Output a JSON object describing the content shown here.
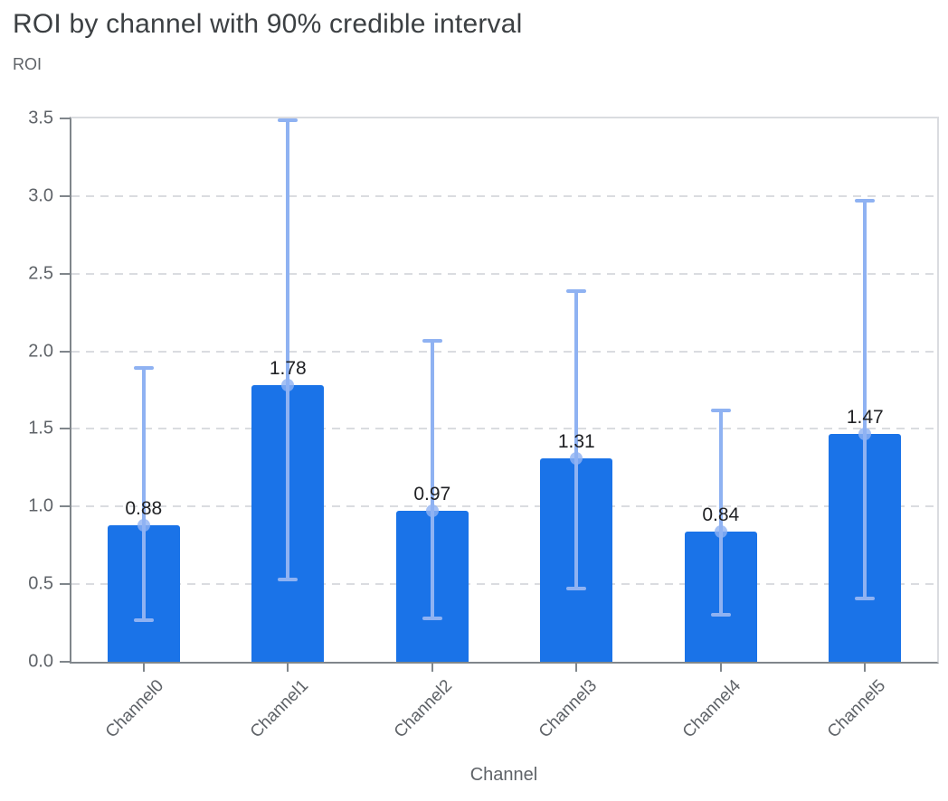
{
  "chart_data": {
    "type": "bar",
    "title": "ROI by channel with 90% credible interval",
    "ylabel": "ROI",
    "xlabel": "Channel",
    "categories": [
      "Channel0",
      "Channel1",
      "Channel2",
      "Channel3",
      "Channel4",
      "Channel5"
    ],
    "values": [
      0.88,
      1.78,
      0.97,
      1.31,
      0.84,
      1.47
    ],
    "value_labels": [
      "0.88",
      "1.78",
      "0.97",
      "1.31",
      "0.84",
      "1.47"
    ],
    "error_low": [
      0.27,
      0.53,
      0.28,
      0.47,
      0.3,
      0.41
    ],
    "error_high": [
      1.89,
      3.49,
      2.07,
      2.39,
      1.62,
      2.97
    ],
    "ylim": [
      0,
      3.5
    ],
    "yticks": [
      "0.0",
      "0.5",
      "1.0",
      "1.5",
      "2.0",
      "2.5",
      "3.0",
      "3.5"
    ],
    "legend": "none",
    "grid": "horizontal-dashed",
    "colors": {
      "bar": "#1a73e8",
      "error_bar": "#8fb2f2",
      "grid": "#dadce0",
      "axis": "#80868b",
      "title_text": "#3c4043",
      "muted_text": "#5f6368",
      "value_text": "#202124",
      "background": "#ffffff"
    }
  }
}
